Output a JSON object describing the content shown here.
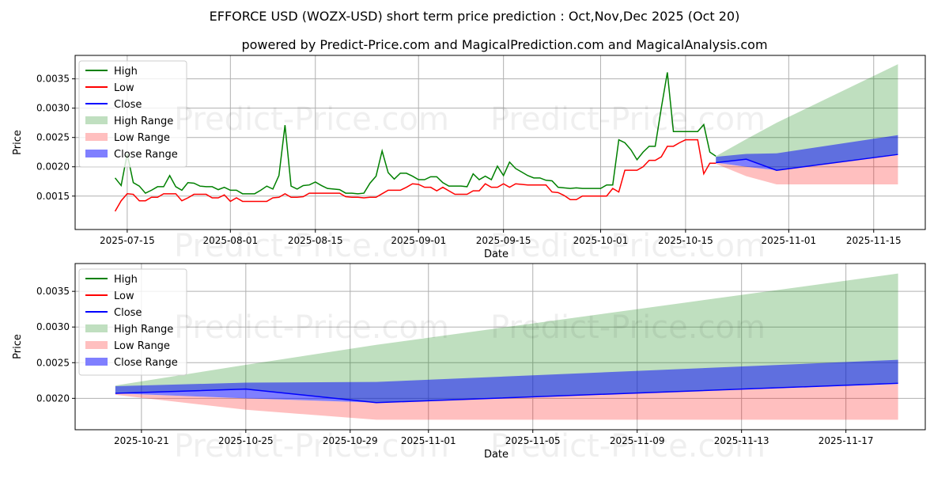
{
  "chart_data": [
    {
      "type": "line",
      "title": "EFFORCE USD (WOZX-USD) short term price prediction : Oct,Nov,Dec 2025 (Oct 20)",
      "subtitle": "powered by Predict-Price.com and MagicalPrediction.com and MagicalAnalysis.com",
      "xlabel": "Date",
      "ylabel": "Price",
      "xlim": [
        "2025-07-06T10:00",
        "2025-11-23T12:00"
      ],
      "ylim": [
        0.00093,
        0.0039
      ],
      "grid": true,
      "legend_position": "top-left",
      "xticks": [
        "2025-07-15",
        "2025-08-01",
        "2025-08-15",
        "2025-09-01",
        "2025-09-15",
        "2025-10-01",
        "2025-10-15",
        "2025-11-01",
        "2025-11-15"
      ],
      "yticks": [
        "0.0015",
        "0.0020",
        "0.0025",
        "0.0030",
        "0.0035"
      ],
      "history_start": "2025-07-13",
      "high": [
        0.00181,
        0.00168,
        0.00222,
        0.00173,
        0.00167,
        0.00155,
        0.0016,
        0.00166,
        0.00166,
        0.00185,
        0.00166,
        0.0016,
        0.00173,
        0.00172,
        0.00167,
        0.00166,
        0.00166,
        0.00161,
        0.00165,
        0.0016,
        0.0016,
        0.00154,
        0.00154,
        0.00154,
        0.0016,
        0.00167,
        0.00162,
        0.00185,
        0.00271,
        0.00167,
        0.00162,
        0.00168,
        0.00169,
        0.00174,
        0.00168,
        0.00163,
        0.00162,
        0.00161,
        0.00155,
        0.00155,
        0.00154,
        0.00155,
        0.00172,
        0.00184,
        0.00227,
        0.0019,
        0.00179,
        0.00189,
        0.00189,
        0.00184,
        0.00178,
        0.00178,
        0.00183,
        0.00183,
        0.00173,
        0.00167,
        0.00167,
        0.00167,
        0.00166,
        0.00188,
        0.00178,
        0.00184,
        0.00178,
        0.00201,
        0.00185,
        0.00208,
        0.00197,
        0.00191,
        0.00185,
        0.00181,
        0.00181,
        0.00177,
        0.00176,
        0.00165,
        0.00164,
        0.00163,
        0.00164,
        0.00163,
        0.00163,
        0.00163,
        0.00163,
        0.00169,
        0.00169,
        0.00246,
        0.00241,
        0.00229,
        0.00212,
        0.00225,
        0.00235,
        0.00235,
        0.003,
        0.00361,
        0.0026,
        0.0026,
        0.0026,
        0.0026,
        0.0026,
        0.00272,
        0.00225,
        0.00218
      ],
      "low": [
        0.00124,
        0.00142,
        0.00154,
        0.00153,
        0.00142,
        0.00142,
        0.00148,
        0.00148,
        0.00154,
        0.00154,
        0.00154,
        0.00142,
        0.00147,
        0.00153,
        0.00153,
        0.00153,
        0.00147,
        0.00147,
        0.00152,
        0.00141,
        0.00147,
        0.00141,
        0.00141,
        0.00141,
        0.00141,
        0.00141,
        0.00147,
        0.00148,
        0.00154,
        0.00148,
        0.00148,
        0.00149,
        0.00155,
        0.00155,
        0.00155,
        0.00155,
        0.00155,
        0.00155,
        0.00149,
        0.00148,
        0.00148,
        0.00147,
        0.00148,
        0.00148,
        0.00154,
        0.0016,
        0.0016,
        0.0016,
        0.00165,
        0.00171,
        0.0017,
        0.00165,
        0.00165,
        0.00159,
        0.00165,
        0.00159,
        0.00153,
        0.00153,
        0.00153,
        0.00159,
        0.00159,
        0.00171,
        0.00165,
        0.00165,
        0.00171,
        0.00165,
        0.00171,
        0.0017,
        0.00169,
        0.00169,
        0.00169,
        0.00169,
        0.00157,
        0.00156,
        0.00151,
        0.00144,
        0.00144,
        0.0015,
        0.0015,
        0.0015,
        0.0015,
        0.0015,
        0.00163,
        0.00157,
        0.00194,
        0.00194,
        0.00194,
        0.002,
        0.00211,
        0.00211,
        0.00217,
        0.00235,
        0.00235,
        0.00241,
        0.00246,
        0.00246,
        0.00246,
        0.00188,
        0.00206,
        0.00206
      ]
    },
    {
      "type": "line",
      "xlabel": "Date",
      "ylabel": "Price",
      "xlim": [
        "2025-10-18T11:00",
        "2025-11-20T01:00"
      ],
      "ylim": [
        0.00156,
        0.00389
      ],
      "grid": true,
      "legend_position": "top-left",
      "xticks": [
        "2025-10-21",
        "2025-10-25",
        "2025-10-29",
        "2025-11-01",
        "2025-11-05",
        "2025-11-09",
        "2025-11-13",
        "2025-11-17"
      ],
      "yticks": [
        "0.0020",
        "0.0025",
        "0.0030",
        "0.0035"
      ]
    }
  ],
  "forecast": {
    "dates": [
      "2025-10-20",
      "2025-10-25",
      "2025-10-30",
      "2025-11-19"
    ],
    "close": [
      0.00207,
      0.00213,
      0.00194,
      0.00221
    ],
    "high_range_upper": [
      0.00218,
      0.00247,
      0.00275,
      0.00375
    ],
    "high_range_lower": [
      0.00217,
      0.00222,
      0.00223,
      0.00254
    ],
    "close_range_upper": [
      0.00217,
      0.00222,
      0.00223,
      0.00254
    ],
    "close_range_lower": [
      0.00207,
      0.002,
      0.00194,
      0.00221
    ],
    "low_range_upper": [
      0.00207,
      0.002,
      0.00194,
      0.0022
    ],
    "low_range_lower": [
      0.00205,
      0.00184,
      0.0017,
      0.0017
    ]
  },
  "legend": [
    "High",
    "Low",
    "Close",
    "High Range",
    "Low Range",
    "Close Range"
  ],
  "watermark": "Predict-Price.com",
  "colors": {
    "high": "#008000",
    "low": "#ff0000",
    "close": "#0000ff",
    "high_range": "#c0dfc0",
    "low_range": "#ffbfbf",
    "close_range": "#7f7fff",
    "grid": "#b0b0b0"
  }
}
